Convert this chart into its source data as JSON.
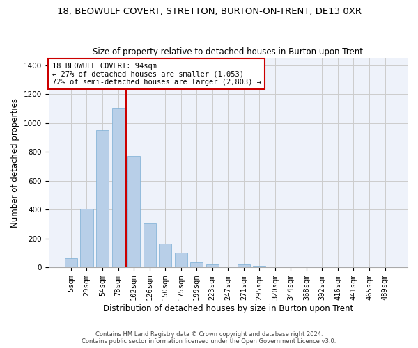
{
  "title": "18, BEOWULF COVERT, STRETTON, BURTON-ON-TRENT, DE13 0XR",
  "subtitle": "Size of property relative to detached houses in Burton upon Trent",
  "xlabel": "Distribution of detached houses by size in Burton upon Trent",
  "ylabel": "Number of detached properties",
  "footer_line1": "Contains HM Land Registry data © Crown copyright and database right 2024.",
  "footer_line2": "Contains public sector information licensed under the Open Government Licence v3.0.",
  "categories": [
    "5sqm",
    "29sqm",
    "54sqm",
    "78sqm",
    "102sqm",
    "126sqm",
    "150sqm",
    "175sqm",
    "199sqm",
    "223sqm",
    "247sqm",
    "271sqm",
    "295sqm",
    "320sqm",
    "344sqm",
    "368sqm",
    "392sqm",
    "416sqm",
    "441sqm",
    "465sqm",
    "489sqm"
  ],
  "values": [
    65,
    405,
    950,
    1105,
    775,
    305,
    165,
    100,
    35,
    18,
    0,
    18,
    10,
    0,
    0,
    0,
    0,
    0,
    0,
    0,
    0
  ],
  "bar_color": "#b8cfe8",
  "bar_edge_color": "#7aadd4",
  "bar_linewidth": 0.5,
  "grid_color": "#cccccc",
  "background_color": "#eef2fa",
  "annotation_box_text": "18 BEOWULF COVERT: 94sqm\n← 27% of detached houses are smaller (1,053)\n72% of semi-detached houses are larger (2,803) →",
  "annotation_box_color": "#ffffff",
  "annotation_box_edge_color": "#cc0000",
  "vline_color": "#cc0000",
  "ylim": [
    0,
    1450
  ],
  "yticks": [
    0,
    200,
    400,
    600,
    800,
    1000,
    1200,
    1400
  ],
  "title_fontsize": 9.5,
  "subtitle_fontsize": 8.5,
  "xlabel_fontsize": 8.5,
  "ylabel_fontsize": 8.5,
  "tick_fontsize": 7.5,
  "annotation_fontsize": 7.5,
  "vline_bar_index": 4
}
